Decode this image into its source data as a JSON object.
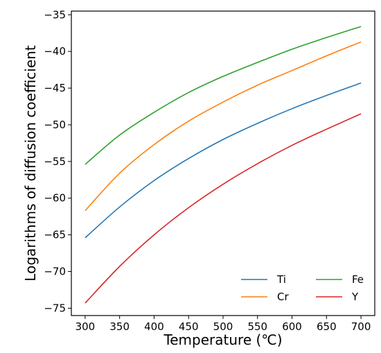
{
  "chart_data": {
    "type": "line",
    "title": "",
    "xlabel": "Temperature (℃)",
    "ylabel": "Logarithms of diffusion coefficient",
    "xlim": [
      280,
      720
    ],
    "ylim": [
      -76,
      -34.5
    ],
    "xticks": [
      300,
      350,
      400,
      450,
      500,
      550,
      600,
      650,
      700
    ],
    "yticks": [
      -35,
      -40,
      -45,
      -50,
      -55,
      -60,
      -65,
      -70,
      -75
    ],
    "x": [
      300,
      350,
      400,
      450,
      500,
      550,
      600,
      650,
      700
    ],
    "series": [
      {
        "name": "Ti",
        "color": "#1f77b4",
        "values": [
          -65.4,
          -61.2,
          -57.6,
          -54.6,
          -52.0,
          -49.8,
          -47.8,
          -46.0,
          -44.3
        ]
      },
      {
        "name": "Cr",
        "color": "#ff7f0e",
        "values": [
          -61.7,
          -56.6,
          -52.7,
          -49.5,
          -46.9,
          -44.6,
          -42.6,
          -40.6,
          -38.7
        ]
      },
      {
        "name": "Fe",
        "color": "#2ca02c",
        "values": [
          -55.4,
          -51.4,
          -48.3,
          -45.6,
          -43.4,
          -41.5,
          -39.7,
          -38.1,
          -36.6
        ]
      },
      {
        "name": "Y",
        "color": "#d62728",
        "values": [
          -74.3,
          -69.3,
          -65.0,
          -61.3,
          -58.1,
          -55.3,
          -52.8,
          -50.6,
          -48.5
        ]
      }
    ],
    "legend": {
      "placement": "lower-right",
      "columns": 2
    },
    "grid": false
  }
}
